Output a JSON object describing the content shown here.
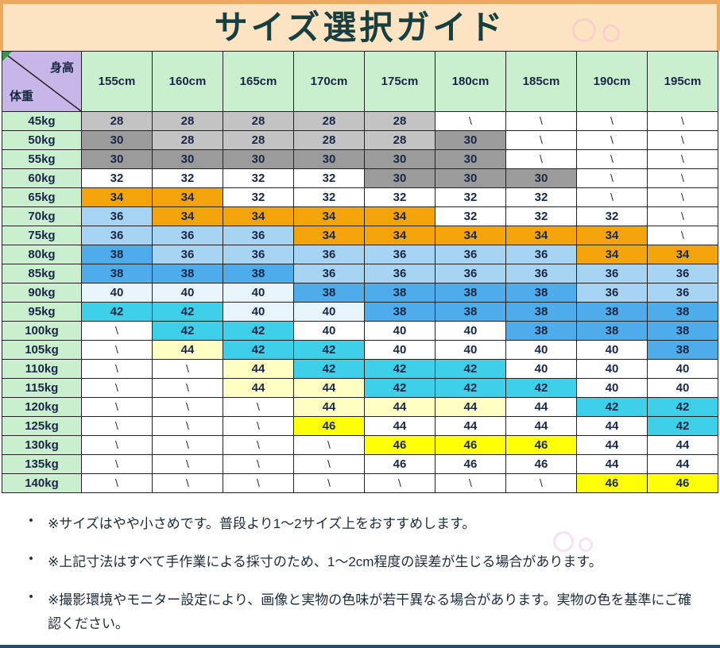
{
  "title": "サイズ選択ガイド",
  "corner": {
    "top_right_label": "身高",
    "bottom_left_label": "体重"
  },
  "chart_data": {
    "type": "table",
    "title": "サイズ選択ガイド",
    "columns": [
      "155cm",
      "160cm",
      "165cm",
      "170cm",
      "175cm",
      "180cm",
      "185cm",
      "190cm",
      "195cm"
    ],
    "rows": [
      "45kg",
      "50kg",
      "55kg",
      "60kg",
      "65kg",
      "70kg",
      "75kg",
      "80kg",
      "85kg",
      "90kg",
      "95kg",
      "100kg",
      "105kg",
      "110kg",
      "115kg",
      "120kg",
      "125kg",
      "130kg",
      "135kg",
      "140kg"
    ],
    "empty_marker": "\\",
    "cells": [
      [
        "28|g",
        "28|g",
        "28|g",
        "28|g",
        "28|g",
        "\\|w",
        "\\|w",
        "\\|w",
        "\\|w"
      ],
      [
        "30|G",
        "28|g",
        "28|g",
        "28|g",
        "28|g",
        "30|G",
        "\\|w",
        "\\|w",
        "\\|w"
      ],
      [
        "30|G",
        "30|G",
        "30|G",
        "30|G",
        "30|G",
        "30|G",
        "\\|w",
        "\\|w",
        "\\|w"
      ],
      [
        "32|w",
        "32|w",
        "32|w",
        "32|w",
        "30|G",
        "30|G",
        "30|G",
        "\\|w",
        "\\|w"
      ],
      [
        "34|o",
        "34|o",
        "32|w",
        "32|w",
        "32|w",
        "32|w",
        "32|w",
        "\\|w",
        "\\|w"
      ],
      [
        "36|b",
        "34|o",
        "34|o",
        "34|o",
        "34|o",
        "32|w",
        "32|w",
        "32|w",
        "\\|w"
      ],
      [
        "36|b",
        "36|b",
        "36|b",
        "34|o",
        "34|o",
        "34|o",
        "34|o",
        "34|o",
        "\\|w"
      ],
      [
        "38|B",
        "36|b",
        "36|b",
        "36|b",
        "36|b",
        "36|b",
        "36|b",
        "34|o",
        "34|o"
      ],
      [
        "38|B",
        "38|B",
        "38|B",
        "36|b",
        "36|b",
        "36|b",
        "36|b",
        "36|b",
        "36|b"
      ],
      [
        "40|a",
        "40|a",
        "40|a",
        "38|B",
        "38|B",
        "38|B",
        "38|B",
        "36|b",
        "36|b"
      ],
      [
        "42|c",
        "42|c",
        "40|a",
        "40|a",
        "38|B",
        "38|B",
        "38|B",
        "38|B",
        "38|B"
      ],
      [
        "\\|w",
        "42|c",
        "42|c",
        "40|w",
        "40|w",
        "40|w",
        "38|B",
        "38|B",
        "38|B"
      ],
      [
        "\\|w",
        "44|y",
        "42|c",
        "42|c",
        "40|w",
        "40|w",
        "40|w",
        "40|w",
        "38|B"
      ],
      [
        "\\|w",
        "\\|w",
        "44|y",
        "42|c",
        "42|c",
        "42|c",
        "40|w",
        "40|w",
        "40|w"
      ],
      [
        "\\|w",
        "\\|w",
        "44|y",
        "44|y",
        "42|c",
        "42|c",
        "42|c",
        "40|w",
        "40|w"
      ],
      [
        "\\|w",
        "\\|w",
        "\\|w",
        "44|y",
        "44|y",
        "44|y",
        "44|w",
        "42|c",
        "42|c"
      ],
      [
        "\\|w",
        "\\|w",
        "\\|w",
        "46|Y",
        "44|w",
        "44|w",
        "44|w",
        "44|w",
        "42|c"
      ],
      [
        "\\|w",
        "\\|w",
        "\\|w",
        "\\|w",
        "46|Y",
        "46|Y",
        "46|Y",
        "44|w",
        "44|w"
      ],
      [
        "\\|w",
        "\\|w",
        "\\|w",
        "\\|w",
        "46|w",
        "46|w",
        "46|w",
        "44|w",
        "44|w"
      ],
      [
        "\\|w",
        "\\|w",
        "\\|w",
        "\\|w",
        "\\|w",
        "\\|w",
        "\\|w",
        "46|Y",
        "46|Y"
      ]
    ],
    "color_legend": {
      "g": {
        "size": "28",
        "hex": "#c3c3c3"
      },
      "G": {
        "size": "30",
        "hex": "#9b9b9b"
      },
      "w": {
        "size": "white / not-available",
        "hex": "#ffffff"
      },
      "o": {
        "size": "34",
        "hex": "#f2a40a"
      },
      "b": {
        "size": "36",
        "hex": "#a6d4f2"
      },
      "B": {
        "size": "38",
        "hex": "#4facea"
      },
      "a": {
        "size": "40",
        "hex": "#e8f5fc"
      },
      "c": {
        "size": "42",
        "hex": "#3fd0e9"
      },
      "y": {
        "size": "44",
        "hex": "#ffffc4"
      },
      "Y": {
        "size": "46",
        "hex": "#ffff06"
      }
    }
  },
  "notes": [
    "※サイズはやや小さめです。普段より1〜2サイズ上をおすすめします。",
    "※上記寸法はすべて手作業による採寸のため、1〜2cm程度の誤差が生じる場合があります。",
    "※撮影環境やモニター設定により、画像と実物の色味が若干異なる場合があります。実物の色を基準にご確認ください。"
  ],
  "bullet_char": "•",
  "colors": {
    "title_bg": "#fce4c2",
    "title_text": "#173f3f",
    "band_border": "#eca85f",
    "header_green": "#c9efcf",
    "corner_lavender": "#c7b6e8",
    "grid_line": "#222222",
    "cell_text": "#1a2744",
    "size_28": "#c3c3c3",
    "size_30": "#9b9b9b",
    "size_34": "#f2a40a",
    "size_36": "#a6d4f2",
    "size_38": "#4facea",
    "size_40_pale": "#e8f5fc",
    "size_42": "#3fd0e9",
    "size_44": "#ffffc4",
    "size_46": "#ffff06",
    "note_text": "#1c2b3a",
    "bottom_line": "#27496a",
    "watermark_pink": "#f2b9da"
  }
}
